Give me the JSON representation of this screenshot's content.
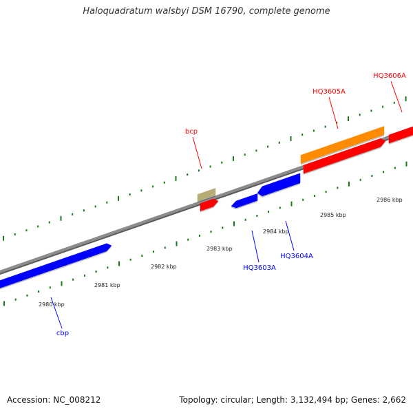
{
  "title": "Haloquadratum walsbyi DSM 16790, complete genome",
  "accession": "Accession: NC_008212",
  "summary": "Topology: circular; Length: 3,132,494 bp; Genes: 2,662",
  "colors": {
    "backbone": "#8c8c8c",
    "minor_tick": "#1a7a1a",
    "forward_cds": "#ff0000",
    "reverse_cds": "#0000ff",
    "rna": "#ff8c00",
    "other": "#b5ad74"
  },
  "scale_labels": [
    "2980 kbp",
    "2981 kbp",
    "2982 kbp",
    "2983 kbp",
    "2984 kbp",
    "2985 kbp",
    "2986 kbp"
  ],
  "gene_labels": [
    {
      "text": "bcp",
      "strand": "forward"
    },
    {
      "text": "HQ3605A",
      "strand": "forward"
    },
    {
      "text": "HQ3606A",
      "strand": "forward"
    },
    {
      "text": "HQ3603A",
      "strand": "reverse"
    },
    {
      "text": "HQ3604A",
      "strand": "reverse"
    },
    {
      "text": "cbp",
      "strand": "reverse"
    }
  ],
  "features": [
    {
      "kind": "reverse_cds",
      "strand": "reverse"
    },
    {
      "kind": "other",
      "strand": "forward"
    },
    {
      "kind": "forward_cds",
      "strand": "forward"
    },
    {
      "kind": "reverse_cds",
      "strand": "reverse"
    },
    {
      "kind": "reverse_cds",
      "strand": "reverse"
    },
    {
      "kind": "rna",
      "strand": "forward"
    },
    {
      "kind": "forward_cds",
      "strand": "forward"
    },
    {
      "kind": "forward_cds",
      "strand": "forward"
    }
  ]
}
